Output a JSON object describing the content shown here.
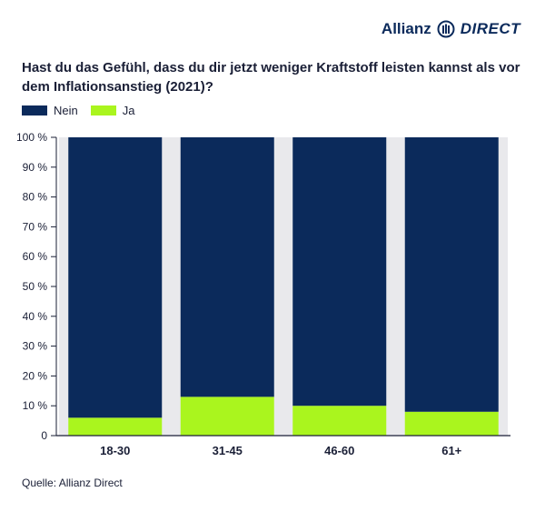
{
  "brand": {
    "name_part1": "Allianz",
    "name_part2": "DIRECT",
    "logo_icon": "allianz-eagle-icon",
    "color": "#0b2a5b"
  },
  "title": "Hast du das Gefühl, dass du dir jetzt weniger Kraftstoff leisten kannst als vor dem Inflationsanstieg (2021)?",
  "legend": [
    {
      "label": "Nein",
      "color": "#0b2a5b"
    },
    {
      "label": "Ja",
      "color": "#aaf51e"
    }
  ],
  "source": "Quelle: Allianz Direct",
  "chart_data": {
    "type": "bar",
    "stacked": true,
    "categories": [
      "18-30",
      "31-45",
      "46-60",
      "61+"
    ],
    "series": [
      {
        "name": "Ja",
        "values": [
          6,
          13,
          10,
          8
        ],
        "color": "#aaf51e"
      },
      {
        "name": "Nein",
        "values": [
          94,
          87,
          90,
          92
        ],
        "color": "#0b2a5b"
      }
    ],
    "ylim": [
      0,
      100
    ],
    "yticks": [
      "0",
      "10 %",
      "20 %",
      "30 %",
      "40 %",
      "50 %",
      "60 %",
      "70 %",
      "80 %",
      "90 %",
      "100 %"
    ],
    "grid": false,
    "legend_position": "top-left"
  }
}
